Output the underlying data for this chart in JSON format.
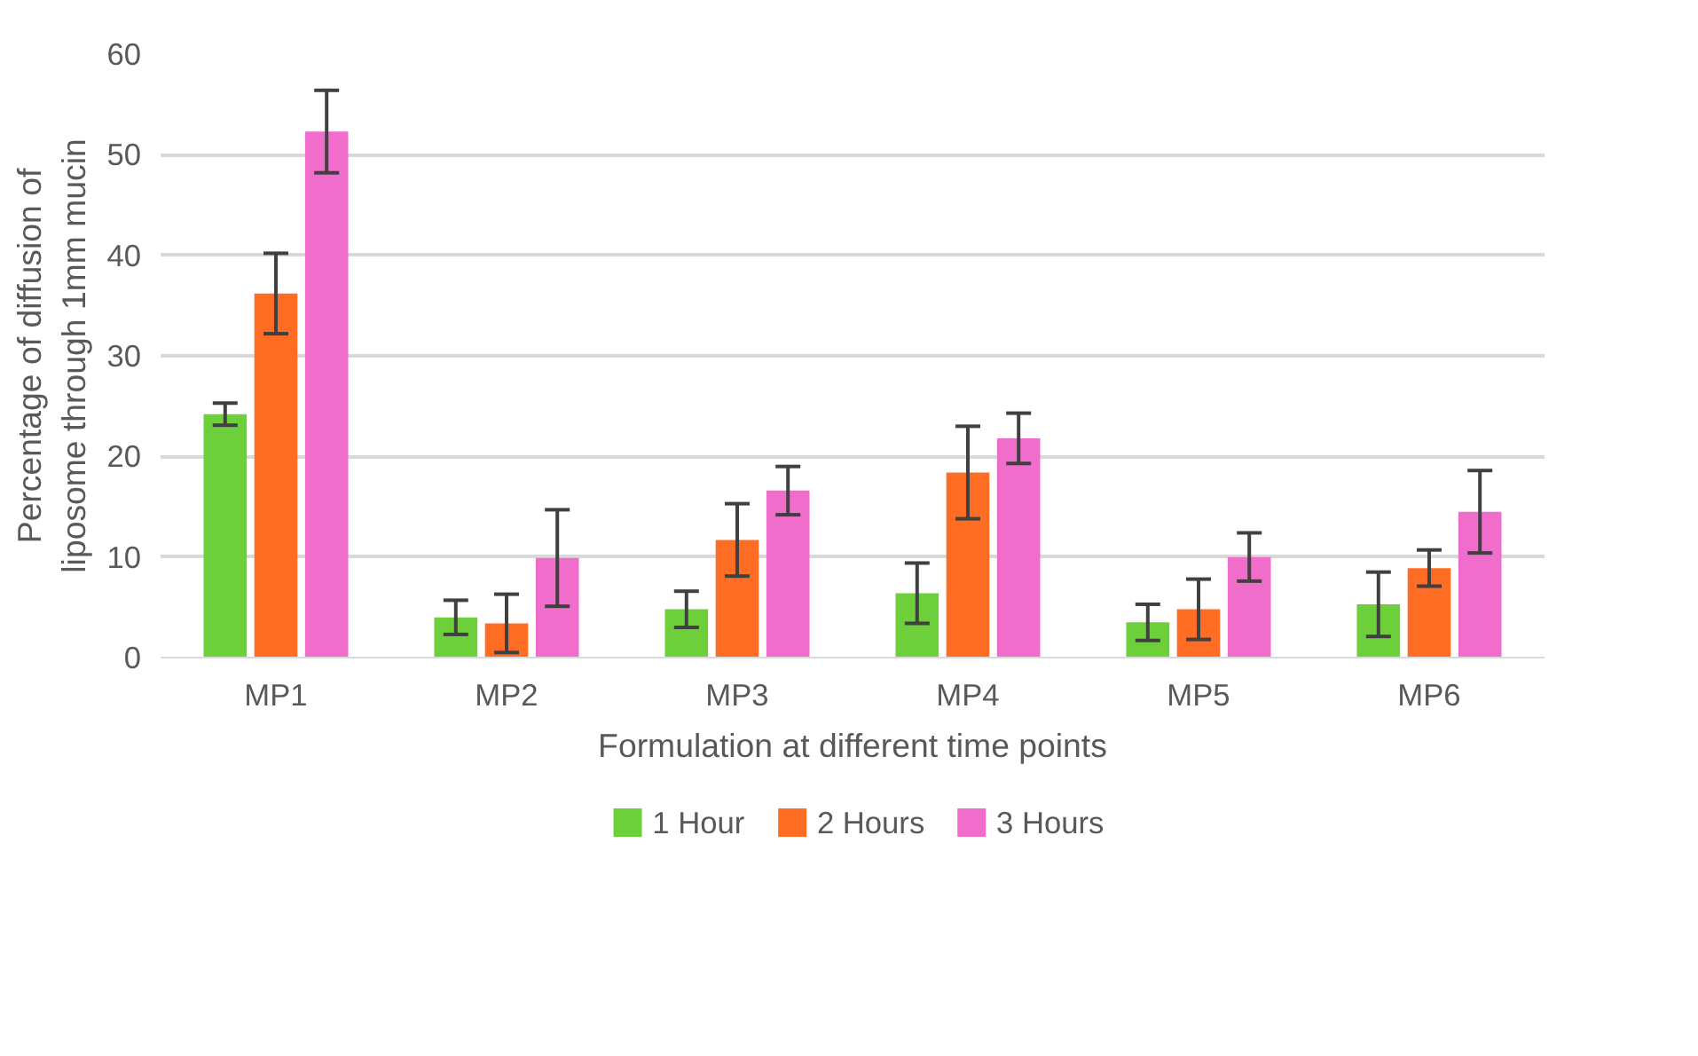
{
  "chart_data": {
    "type": "bar",
    "xlabel": "Formulation at different time points",
    "ylabel": "Percentage of diffusion of liposome through 1mm mucin",
    "categories": [
      "MP1",
      "MP2",
      "MP3",
      "MP4",
      "MP5",
      "MP6"
    ],
    "series": [
      {
        "name": "1 Hour",
        "color": "#6dcf3a",
        "values": [
          24.2,
          4.0,
          4.8,
          6.4,
          3.5,
          5.3
        ],
        "errors": [
          1.1,
          1.7,
          1.8,
          3.0,
          1.8,
          3.2
        ]
      },
      {
        "name": "2 Hours",
        "color": "#ff6d24",
        "values": [
          36.2,
          3.4,
          11.7,
          18.4,
          4.8,
          8.9
        ],
        "errors": [
          4.0,
          2.9,
          3.6,
          4.6,
          3.0,
          1.8
        ]
      },
      {
        "name": "3 Hours",
        "color": "#f06dcc",
        "values": [
          52.3,
          9.9,
          16.6,
          21.8,
          10.0,
          14.5
        ],
        "errors": [
          4.1,
          4.8,
          2.4,
          2.5,
          2.4,
          4.1
        ]
      }
    ],
    "ylim": [
      0,
      60
    ],
    "yticks": [
      0,
      10,
      20,
      30,
      40,
      50,
      60
    ],
    "grid": "y",
    "legend": "bottom"
  }
}
